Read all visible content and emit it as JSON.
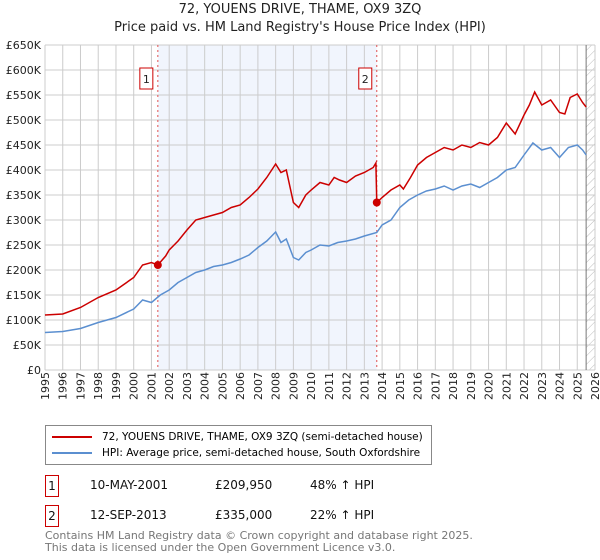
{
  "chart_data": {
    "type": "line",
    "title": "72, YOUENS DRIVE, THAME, OX9 3ZQ",
    "subtitle": "Price paid vs. HM Land Registry's House Price Index (HPI)",
    "xlim": [
      1995,
      2026
    ],
    "ylim": [
      0,
      650000
    ],
    "yticks": [
      0,
      50000,
      100000,
      150000,
      200000,
      250000,
      300000,
      350000,
      400000,
      450000,
      500000,
      550000,
      600000,
      650000
    ],
    "ytick_labels": [
      "£0",
      "£50K",
      "£100K",
      "£150K",
      "£200K",
      "£250K",
      "£300K",
      "£350K",
      "£400K",
      "£450K",
      "£500K",
      "£550K",
      "£600K",
      "£650K"
    ],
    "xticks": [
      1995,
      1996,
      1997,
      1998,
      1999,
      2000,
      2001,
      2002,
      2003,
      2004,
      2005,
      2006,
      2007,
      2008,
      2009,
      2010,
      2011,
      2012,
      2013,
      2014,
      2015,
      2016,
      2017,
      2018,
      2019,
      2020,
      2021,
      2022,
      2023,
      2024,
      2025,
      2026
    ],
    "grid": true,
    "shaded_range": [
      2001.36,
      2013.7
    ],
    "forecast_hatch_from": 2025.5,
    "series": [
      {
        "name": "72, YOUENS DRIVE, THAME, OX9 3ZQ (semi-detached house)",
        "color": "#cc0000",
        "x": [
          1995,
          1996,
          1997,
          1998,
          1999,
          2000,
          2000.5,
          2001,
          2001.36,
          2001.8,
          2002,
          2002.5,
          2003,
          2003.5,
          2004,
          2004.5,
          2005,
          2005.5,
          2006,
          2006.5,
          2007,
          2007.5,
          2008,
          2008.3,
          2008.6,
          2009,
          2009.3,
          2009.7,
          2010,
          2010.5,
          2011,
          2011.3,
          2011.6,
          2012,
          2012.5,
          2013,
          2013.5,
          2013.65,
          2013.7,
          2014,
          2014.5,
          2015,
          2015.2,
          2015.6,
          2016,
          2016.5,
          2017,
          2017.5,
          2018,
          2018.5,
          2019,
          2019.5,
          2020,
          2020.5,
          2021,
          2021.5,
          2022,
          2022.3,
          2022.6,
          2023,
          2023.5,
          2024,
          2024.3,
          2024.6,
          2025,
          2025.3,
          2025.5
        ],
        "y": [
          110000,
          112000,
          125000,
          145000,
          160000,
          185000,
          210000,
          215000,
          209950,
          228000,
          240000,
          258000,
          280000,
          300000,
          305000,
          310000,
          315000,
          325000,
          330000,
          345000,
          362000,
          385000,
          412000,
          395000,
          400000,
          335000,
          325000,
          350000,
          360000,
          375000,
          370000,
          385000,
          380000,
          375000,
          388000,
          395000,
          405000,
          414000,
          335000,
          345000,
          360000,
          370000,
          362000,
          385000,
          410000,
          425000,
          435000,
          445000,
          440000,
          450000,
          445000,
          455000,
          450000,
          465000,
          494000,
          472000,
          510000,
          530000,
          556000,
          530000,
          540000,
          515000,
          512000,
          545000,
          552000,
          535000,
          526000
        ]
      },
      {
        "name": "HPI: Average price, semi-detached house, South Oxfordshire",
        "color": "#5b8fd0",
        "x": [
          1995,
          1996,
          1997,
          1998,
          1999,
          2000,
          2000.5,
          2001,
          2001.5,
          2002,
          2002.5,
          2003,
          2003.5,
          2004,
          2004.5,
          2005,
          2005.5,
          2006,
          2006.5,
          2007,
          2007.5,
          2008,
          2008.3,
          2008.6,
          2009,
          2009.3,
          2009.7,
          2010,
          2010.5,
          2011,
          2011.5,
          2012,
          2012.5,
          2013,
          2013.7,
          2014,
          2014.5,
          2015,
          2015.5,
          2016,
          2016.5,
          2017,
          2017.5,
          2018,
          2018.5,
          2019,
          2019.5,
          2020,
          2020.5,
          2021,
          2021.5,
          2022,
          2022.5,
          2023,
          2023.5,
          2024,
          2024.5,
          2025,
          2025.3,
          2025.5
        ],
        "y": [
          75000,
          77000,
          83000,
          95000,
          105000,
          122000,
          140000,
          135000,
          150000,
          160000,
          175000,
          185000,
          195000,
          200000,
          207000,
          210000,
          215000,
          222000,
          230000,
          245000,
          258000,
          276000,
          255000,
          262000,
          225000,
          220000,
          235000,
          240000,
          250000,
          248000,
          255000,
          258000,
          262000,
          268000,
          275000,
          290000,
          300000,
          325000,
          340000,
          350000,
          358000,
          362000,
          368000,
          360000,
          368000,
          372000,
          365000,
          375000,
          385000,
          400000,
          405000,
          430000,
          454000,
          440000,
          445000,
          425000,
          445000,
          450000,
          440000,
          430000
        ]
      }
    ],
    "annotations": [
      {
        "label": "1",
        "x": 2001.36,
        "y": 209950
      },
      {
        "label": "2",
        "x": 2013.7,
        "y": 335000
      }
    ]
  },
  "legend": {
    "red": "72, YOUENS DRIVE, THAME, OX9 3ZQ (semi-detached house)",
    "blue": "HPI: Average price, semi-detached house, South Oxfordshire"
  },
  "sales": [
    {
      "num": "1",
      "date": "10-MAY-2001",
      "price": "£209,950",
      "hpi": "48% ↑ HPI"
    },
    {
      "num": "2",
      "date": "12-SEP-2013",
      "price": "£335,000",
      "hpi": "22% ↑ HPI"
    }
  ],
  "footer": {
    "line1": "Contains HM Land Registry data © Crown copyright and database right 2025.",
    "line2": "This data is licensed under the Open Government Licence v3.0."
  }
}
